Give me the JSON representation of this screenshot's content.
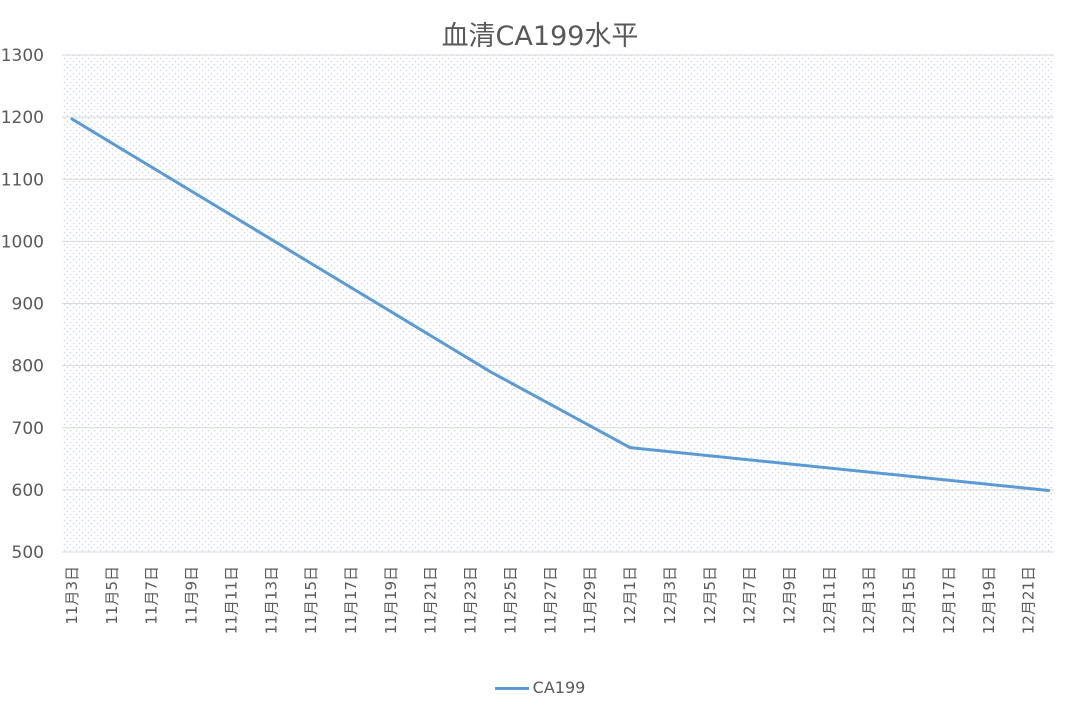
{
  "chart_data": {
    "type": "line",
    "title": "血清CA199水平",
    "xlabel": "",
    "ylabel": "",
    "ylim": [
      500,
      1300
    ],
    "yticks": [
      500,
      600,
      700,
      800,
      900,
      1000,
      1100,
      1200,
      1300
    ],
    "x_tick_labels": [
      "11月3日",
      "11月5日",
      "11月7日",
      "11月9日",
      "11月11日",
      "11月13日",
      "11月15日",
      "11月17日",
      "11月19日",
      "11月21日",
      "11月23日",
      "11月25日",
      "11月27日",
      "11月29日",
      "12月1日",
      "12月3日",
      "12月5日",
      "12月7日",
      "12月9日",
      "12月11日",
      "12月13日",
      "12月15日",
      "12月17日",
      "12月19日",
      "12月21日"
    ],
    "grid": true,
    "legend_position": "bottom",
    "series": [
      {
        "name": "CA199",
        "color": "#5b9bd5",
        "points": [
          {
            "x": "11月3日",
            "day": 0,
            "y": 1197
          },
          {
            "x": "11月24日",
            "day": 21,
            "y": 790
          },
          {
            "x": "12月1日",
            "day": 28,
            "y": 668
          },
          {
            "x": "12月22日",
            "day": 49,
            "y": 599
          }
        ]
      }
    ]
  },
  "legend": {
    "label": "CA199"
  }
}
